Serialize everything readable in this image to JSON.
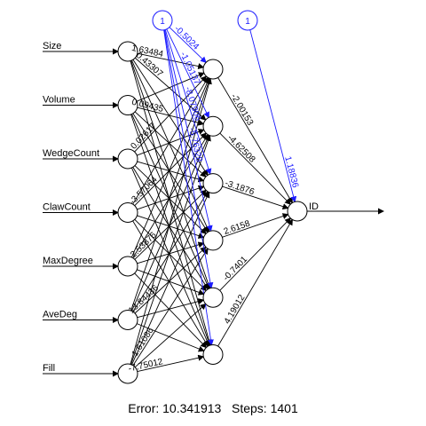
{
  "inputs": [
    "Size",
    "Volume",
    "WedgeCount",
    "ClawCount",
    "MaxDegree",
    "AveDeg",
    "Fill"
  ],
  "output": "ID",
  "bias_label": "1",
  "input_to_hidden_labels": [
    [
      "1.63484",
      "0.43307",
      "",
      "",
      "",
      ""
    ],
    [
      "",
      "0.09435",
      "",
      "",
      "",
      ""
    ],
    [
      "0.02617",
      "",
      "",
      "",
      "",
      ""
    ],
    [
      "",
      "-3.57064",
      "",
      "",
      "",
      ""
    ],
    [
      "",
      "",
      "2.53876",
      "",
      "",
      ""
    ],
    [
      "",
      "",
      "",
      "13.84436",
      "",
      ""
    ],
    [
      "",
      "",
      "",
      "1.61086",
      "",
      "-7.75012"
    ]
  ],
  "hidden_bias_labels": [
    "-0.5024",
    "-1.05137",
    "-8.07906",
    "-5.76328",
    "",
    ""
  ],
  "hidden_to_output_labels": [
    "-2.00153",
    "-4.62508",
    "-3.1876",
    "2.6158",
    "-0.7401",
    "4.19012"
  ],
  "output_bias_label": "1.18836",
  "footer": {
    "error": "Error: 10.341913",
    "steps": "Steps: 1401"
  }
}
